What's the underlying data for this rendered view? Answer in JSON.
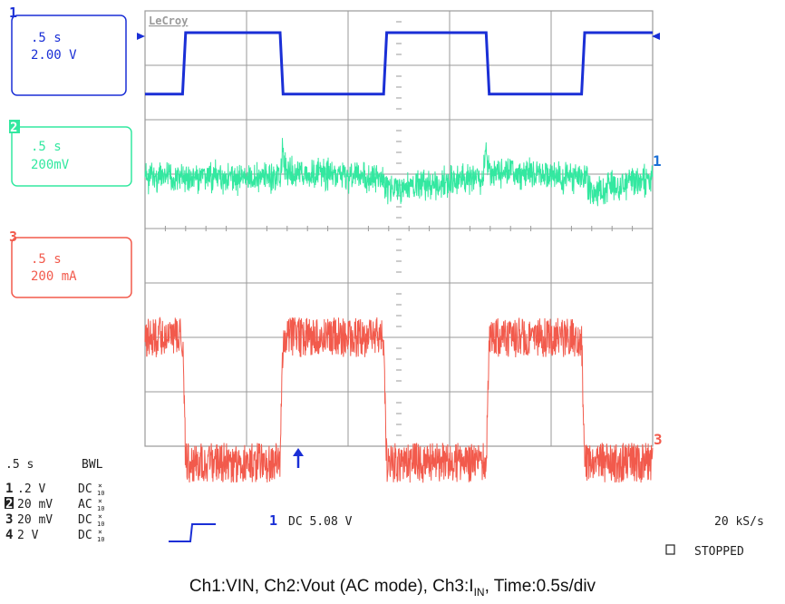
{
  "brand": "LeCroy",
  "colors": {
    "ch1": "#1a2fd6",
    "ch2": "#33e8a0",
    "ch3": "#f25a4c",
    "grid": "#9a9a9a",
    "text": "#222222"
  },
  "channels": [
    {
      "num": "1",
      "time": ".5 s",
      "scale": "2.00 V"
    },
    {
      "num": "2",
      "time": ".5 s",
      "scale": "200mV"
    },
    {
      "num": "3",
      "time": ".5 s",
      "scale": "200 mA"
    }
  ],
  "trace_labels": {
    "ch2_right": "1",
    "ch3_right": "3"
  },
  "status": {
    "timebase": ".5  s",
    "bwl": "BWL",
    "rows": [
      {
        "num": "1",
        "volts": ".2  V",
        "coupling": "DC"
      },
      {
        "num": "2",
        "volts": "20 mV",
        "coupling": "AC"
      },
      {
        "num": "3",
        "volts": "20 mV",
        "coupling": "DC"
      },
      {
        "num": "4",
        "volts": "2  V",
        "coupling": "DC"
      }
    ],
    "probe_top": "×",
    "probe_bottom": "10",
    "trigger_channel": "1",
    "trigger_text": "DC 5.08 V",
    "sample_rate": "20 kS/s",
    "state": "STOPPED"
  },
  "caption": {
    "part1": "Ch1:VIN, Ch2:Vout (AC mode), Ch3:I",
    "sub": "IN",
    "part2": ", Time:0.5s/div"
  },
  "chart_data": {
    "type": "line",
    "grid": true,
    "x_divisions": 5,
    "y_divisions": 8,
    "series": [
      {
        "name": "1",
        "values_div": [
          [
            0,
            0.0
          ],
          [
            0.37,
            0.0
          ],
          [
            0.4,
            1.0
          ],
          [
            1.33,
            1.0
          ],
          [
            1.36,
            0.0
          ],
          [
            2.35,
            0.0
          ],
          [
            2.38,
            1.0
          ],
          [
            3.36,
            1.0
          ],
          [
            3.39,
            0.0
          ],
          [
            4.3,
            0.0
          ],
          [
            4.33,
            1.0
          ],
          [
            5.0,
            1.0
          ]
        ]
      },
      {
        "name": "2",
        "values_div": [
          [
            0,
            0.0
          ],
          [
            1.33,
            0.0
          ],
          [
            1.35,
            0.8
          ],
          [
            1.4,
            0.2
          ],
          [
            2.35,
            0.0
          ],
          [
            2.37,
            -0.4
          ],
          [
            3.33,
            0.0
          ],
          [
            3.35,
            0.8
          ],
          [
            3.4,
            0.2
          ],
          [
            4.35,
            0.0
          ],
          [
            4.37,
            -0.5
          ],
          [
            5.0,
            0.0
          ]
        ]
      },
      {
        "name": "3",
        "values_div": [
          [
            0,
            0.0
          ],
          [
            0.37,
            0.0
          ],
          [
            0.4,
            -1.8
          ],
          [
            1.33,
            -1.8
          ],
          [
            1.36,
            0.0
          ],
          [
            2.35,
            0.0
          ],
          [
            2.38,
            -1.8
          ],
          [
            3.36,
            -1.8
          ],
          [
            3.39,
            0.0
          ],
          [
            4.3,
            0.0
          ],
          [
            4.33,
            -1.8
          ],
          [
            5.0,
            -1.8
          ]
        ]
      }
    ]
  }
}
